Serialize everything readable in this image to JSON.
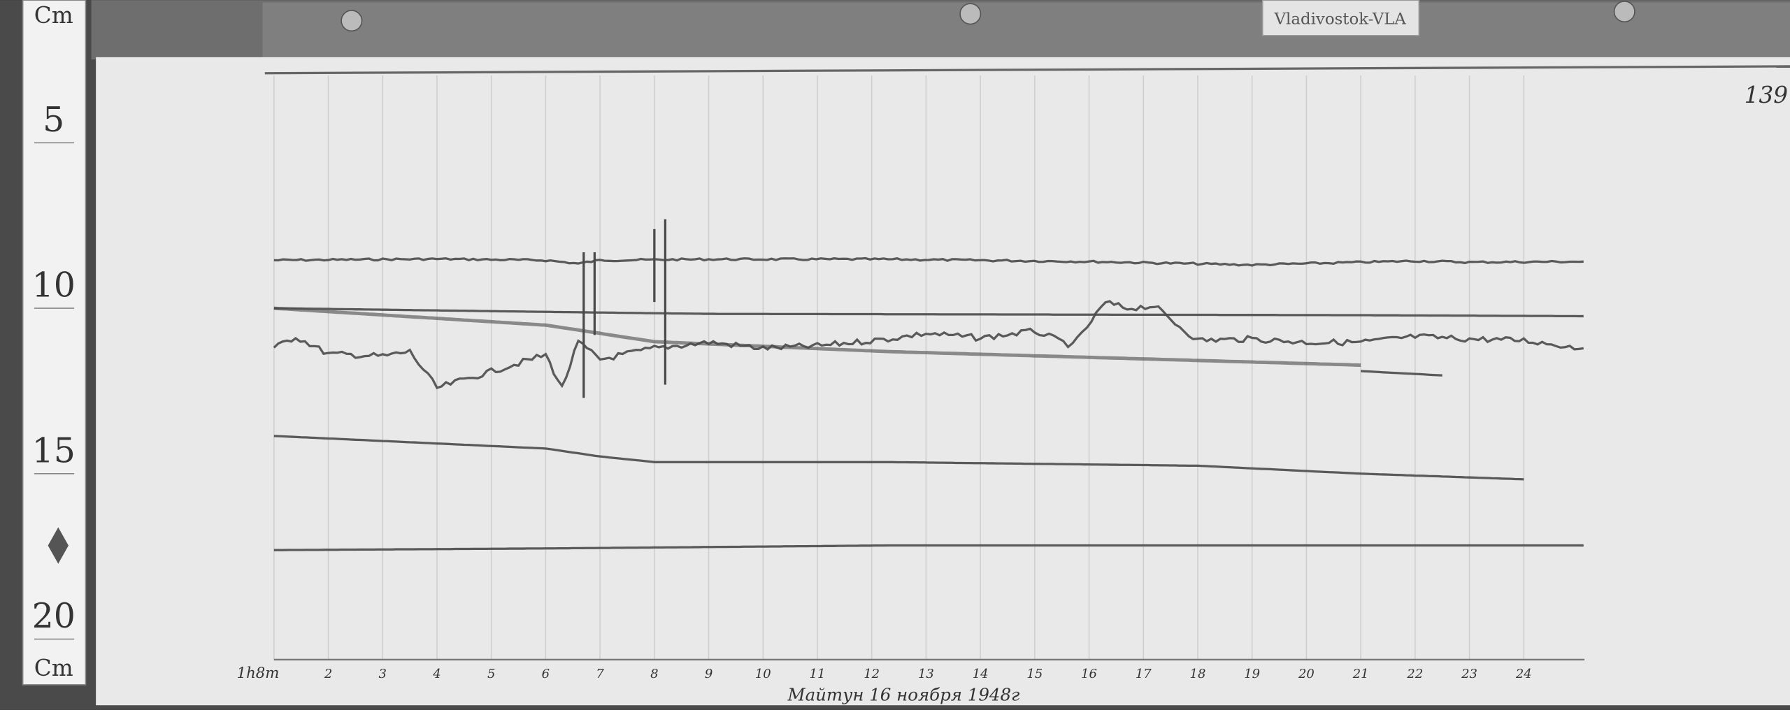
{
  "sign": "Vladivostok-VLA",
  "page_number": "139",
  "ruler": {
    "labels": [
      "Cm",
      "5",
      "10",
      "15",
      "20",
      "Cm"
    ]
  },
  "caption": "Майтун 16 ноября 1948г",
  "colors": {
    "paper": "#e9e9e9",
    "trace": "#4a4a4a",
    "board": "#5a5a5a",
    "grid": "#cfcfcf"
  },
  "chart_data": {
    "type": "line",
    "title": "",
    "xlabel": "",
    "ylabel": "",
    "x_unit": "hours",
    "y_unit": "cm (ruler)",
    "xlim": [
      1,
      25.1
    ],
    "ylim": [
      5,
      20
    ],
    "grid": true,
    "x_tick_labels": [
      "1h8m",
      "2",
      "3",
      "4",
      "5",
      "6",
      "7",
      "8",
      "9",
      "10",
      "11",
      "12",
      "13",
      "14",
      "15",
      "16",
      "17",
      "18",
      "19",
      "20",
      "21",
      "22",
      "23",
      "24"
    ],
    "x_ticks": [
      1,
      2,
      3,
      4,
      5,
      6,
      7,
      8,
      9,
      10,
      11,
      12,
      13,
      14,
      15,
      16,
      17,
      18,
      19,
      20,
      21,
      22,
      23,
      24
    ],
    "series": [
      {
        "values": [
          [
            1,
            9.24
          ],
          [
            4,
            9.2
          ],
          [
            6,
            9.24
          ],
          [
            6.6,
            9.34
          ],
          [
            7,
            9.24
          ],
          [
            9,
            9.21
          ],
          [
            12.3,
            9.21
          ],
          [
            16,
            9.28
          ],
          [
            19,
            9.38
          ],
          [
            22,
            9.26
          ],
          [
            23,
            9.3
          ],
          [
            25.1,
            9.28
          ]
        ]
      },
      {
        "values": [
          [
            1,
            10.69
          ],
          [
            6,
            10.8
          ],
          [
            9,
            10.86
          ],
          [
            21,
            10.9
          ],
          [
            25.1,
            10.93
          ]
        ]
      },
      {
        "values": [
          [
            1,
            10.69
          ],
          [
            6,
            11.2
          ],
          [
            8,
            11.7
          ],
          [
            12.3,
            12.0
          ],
          [
            21,
            12.41
          ]
        ]
      },
      {
        "values": [
          [
            1,
            11.9
          ],
          [
            1.4,
            11.55
          ],
          [
            2,
            12.07
          ],
          [
            3,
            12.14
          ],
          [
            3.5,
            12.0
          ],
          [
            4,
            13.1
          ],
          [
            5,
            12.6
          ],
          [
            6,
            12.1
          ],
          [
            6.3,
            13.1
          ],
          [
            6.6,
            11.72
          ],
          [
            7,
            12.24
          ],
          [
            8,
            11.9
          ],
          [
            9,
            11.72
          ],
          [
            10,
            11.9
          ],
          [
            11,
            11.83
          ],
          [
            12.3,
            11.62
          ],
          [
            13,
            11.45
          ],
          [
            14,
            11.59
          ],
          [
            15,
            11.38
          ],
          [
            15.7,
            11.83
          ],
          [
            16.3,
            10.52
          ],
          [
            16.7,
            10.69
          ],
          [
            17.2,
            10.62
          ],
          [
            17.5,
            11.03
          ],
          [
            18,
            11.66
          ],
          [
            19,
            11.62
          ],
          [
            20,
            11.72
          ],
          [
            21,
            11.72
          ],
          [
            22,
            11.55
          ],
          [
            23,
            11.62
          ],
          [
            24,
            11.66
          ],
          [
            25.1,
            11.9
          ]
        ]
      },
      {
        "values": [
          [
            1,
            14.55
          ],
          [
            6,
            14.93
          ],
          [
            7,
            15.17
          ],
          [
            8,
            15.34
          ],
          [
            12.3,
            15.34
          ],
          [
            18,
            15.45
          ],
          [
            21,
            15.69
          ],
          [
            24,
            15.86
          ]
        ]
      },
      {
        "values": [
          [
            1,
            18.0
          ],
          [
            6,
            17.95
          ],
          [
            12.3,
            17.86
          ],
          [
            25.1,
            17.86
          ]
        ]
      },
      {
        "values": [
          [
            21,
            12.59
          ],
          [
            22.5,
            12.72
          ]
        ]
      }
    ],
    "spikes": [
      [
        6.7,
        9.0,
        13.4
      ],
      [
        6.9,
        9.0,
        11.5
      ],
      [
        8.2,
        8.0,
        13.0
      ],
      [
        8.0,
        8.3,
        10.5
      ]
    ]
  }
}
